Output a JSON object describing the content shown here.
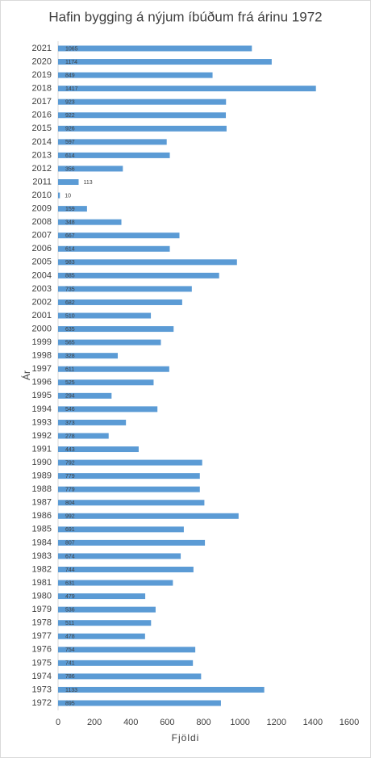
{
  "chart_data": {
    "type": "hbar",
    "title": "Hafin bygging á nýjum íbúðum frá árinu 1972",
    "x_label": "Fjöldi",
    "y_label": "Ár",
    "categories": [
      "1972",
      "1973",
      "1974",
      "1975",
      "1976",
      "1977",
      "1978",
      "1979",
      "1980",
      "1981",
      "1982",
      "1983",
      "1984",
      "1985",
      "1986",
      "1987",
      "1988",
      "1989",
      "1990",
      "1991",
      "1992",
      "1993",
      "1994",
      "1995",
      "1996",
      "1997",
      "1998",
      "1999",
      "2000",
      "2001",
      "2002",
      "2003",
      "2004",
      "2005",
      "2006",
      "2007",
      "2008",
      "2009",
      "2010",
      "2011",
      "2012",
      "2013",
      "2014",
      "2015",
      "2016",
      "2017",
      "2018",
      "2019",
      "2020",
      "2021"
    ],
    "values": [
      895,
      1133,
      786,
      741,
      754,
      478,
      511,
      536,
      479,
      631,
      744,
      674,
      807,
      691,
      992,
      804,
      779,
      779,
      792,
      443,
      278,
      373,
      546,
      294,
      525,
      611,
      328,
      565,
      635,
      510,
      682,
      735,
      885,
      983,
      614,
      667,
      348,
      159,
      10,
      113,
      356,
      614,
      597,
      926,
      922,
      923,
      1417,
      849,
      1174,
      1065
    ],
    "color": "#5b9bd5",
    "xlim": [
      0,
      1600
    ],
    "xticks": [
      0,
      200,
      400,
      600,
      800,
      1000,
      1200,
      1400,
      1600
    ],
    "grid": false
  }
}
